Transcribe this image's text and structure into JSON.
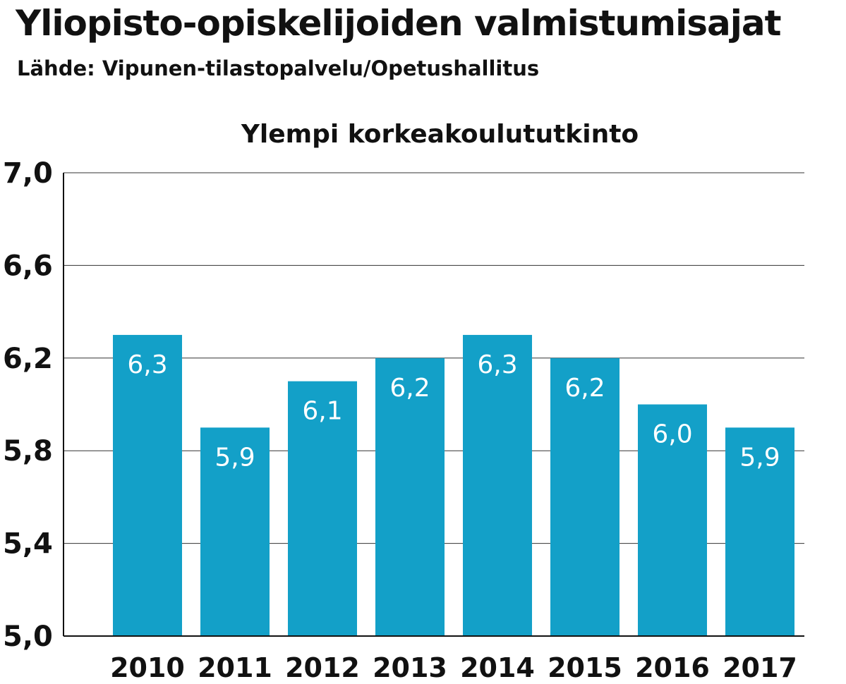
{
  "header": {
    "title": "Yliopisto-opiskelijoiden valmistumisajat",
    "subtitle": "Lähde: Vipunen-tilastopalvelu/Opetushallitus"
  },
  "chart_data": {
    "type": "bar",
    "title": "Ylempi korkeakoulututkinto",
    "xlabel": "",
    "ylabel": "",
    "categories": [
      "2010",
      "2011",
      "2012",
      "2013",
      "2014",
      "2015",
      "2016",
      "2017"
    ],
    "values": [
      6.3,
      5.9,
      6.1,
      6.2,
      6.3,
      6.2,
      6.0,
      5.9
    ],
    "value_labels": [
      "6,3",
      "5,9",
      "6,1",
      "6,2",
      "6,3",
      "6,2",
      "6,0",
      "5,9"
    ],
    "ylim": [
      5.0,
      7.0
    ],
    "yticks": [
      5.0,
      5.4,
      5.8,
      6.2,
      6.6,
      7.0
    ],
    "ytick_labels": [
      "5,0",
      "5,4",
      "5,8",
      "6,2",
      "6,6",
      "7,0"
    ],
    "grid": true,
    "legend": "none",
    "colors": {
      "bar": "#13a0c8",
      "grid": "#333333",
      "axis": "#111111",
      "data_label": "#ffffff"
    }
  }
}
